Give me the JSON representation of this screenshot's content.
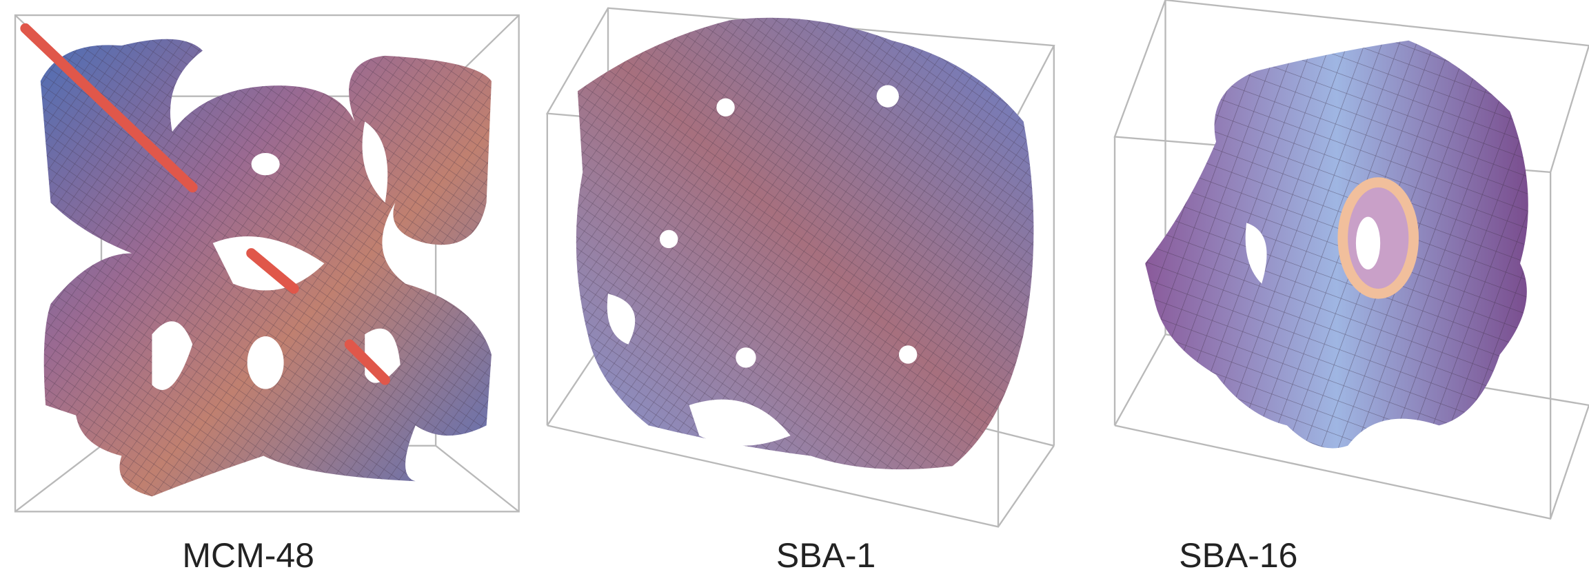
{
  "labels": [
    "MCM-48",
    "SBA-1",
    "SBA-16"
  ]
}
